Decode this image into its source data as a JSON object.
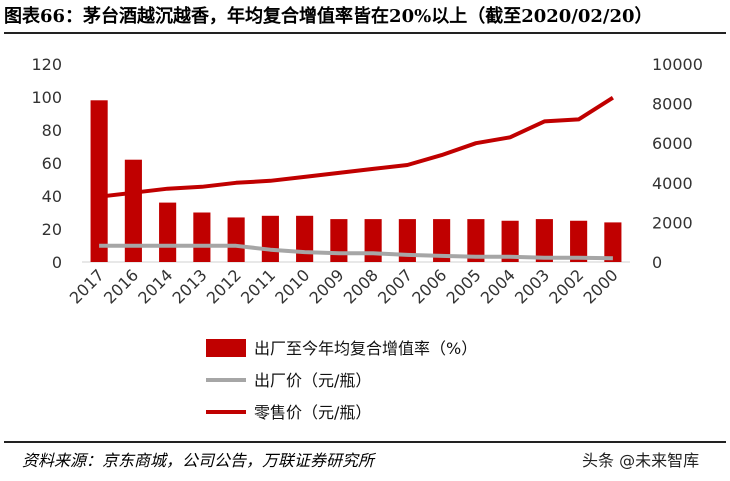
{
  "page": {
    "title": "图表66：茅台酒越沉越香，年均复合增值率皆在20%以上（截至2020/02/20）",
    "source": "资料来源：京东商城，公司公告，万联证券研究所",
    "watermark": "头条 @未来智库"
  },
  "chart_data": {
    "type": "bar",
    "categories": [
      "2017",
      "2016",
      "2014",
      "2013",
      "2012",
      "2011",
      "2010",
      "2009",
      "2008",
      "2007",
      "2006",
      "2005",
      "2004",
      "2003",
      "2002",
      "2000"
    ],
    "y_left": {
      "ylim": [
        0,
        120
      ],
      "ticks": [
        0,
        20,
        40,
        60,
        80,
        100,
        120
      ]
    },
    "y_right": {
      "ylim": [
        0,
        10000
      ],
      "ticks": [
        0,
        2000,
        4000,
        6000,
        8000,
        10000
      ]
    },
    "series": [
      {
        "name": "出厂至今年均复合增值率（%）",
        "kind": "bar",
        "axis": "left",
        "color": "#c00000",
        "values": [
          98,
          62,
          36,
          30,
          27,
          28,
          28,
          26,
          26,
          26,
          26,
          26,
          25,
          26,
          25,
          24
        ]
      },
      {
        "name": "出厂价（元/瓶）",
        "kind": "line",
        "axis": "right",
        "color": "#a6a6a6",
        "values": [
          819,
          819,
          819,
          819,
          819,
          619,
          499,
          439,
          439,
          358,
          308,
          268,
          268,
          218,
          218,
          185
        ]
      },
      {
        "name": "零售价（元/瓶）",
        "kind": "line",
        "axis": "right",
        "color": "#c00000",
        "values": [
          3300,
          3500,
          3700,
          3800,
          4000,
          4100,
          4300,
          4500,
          4700,
          4900,
          5400,
          6000,
          6300,
          7100,
          7200,
          8300
        ]
      }
    ]
  }
}
